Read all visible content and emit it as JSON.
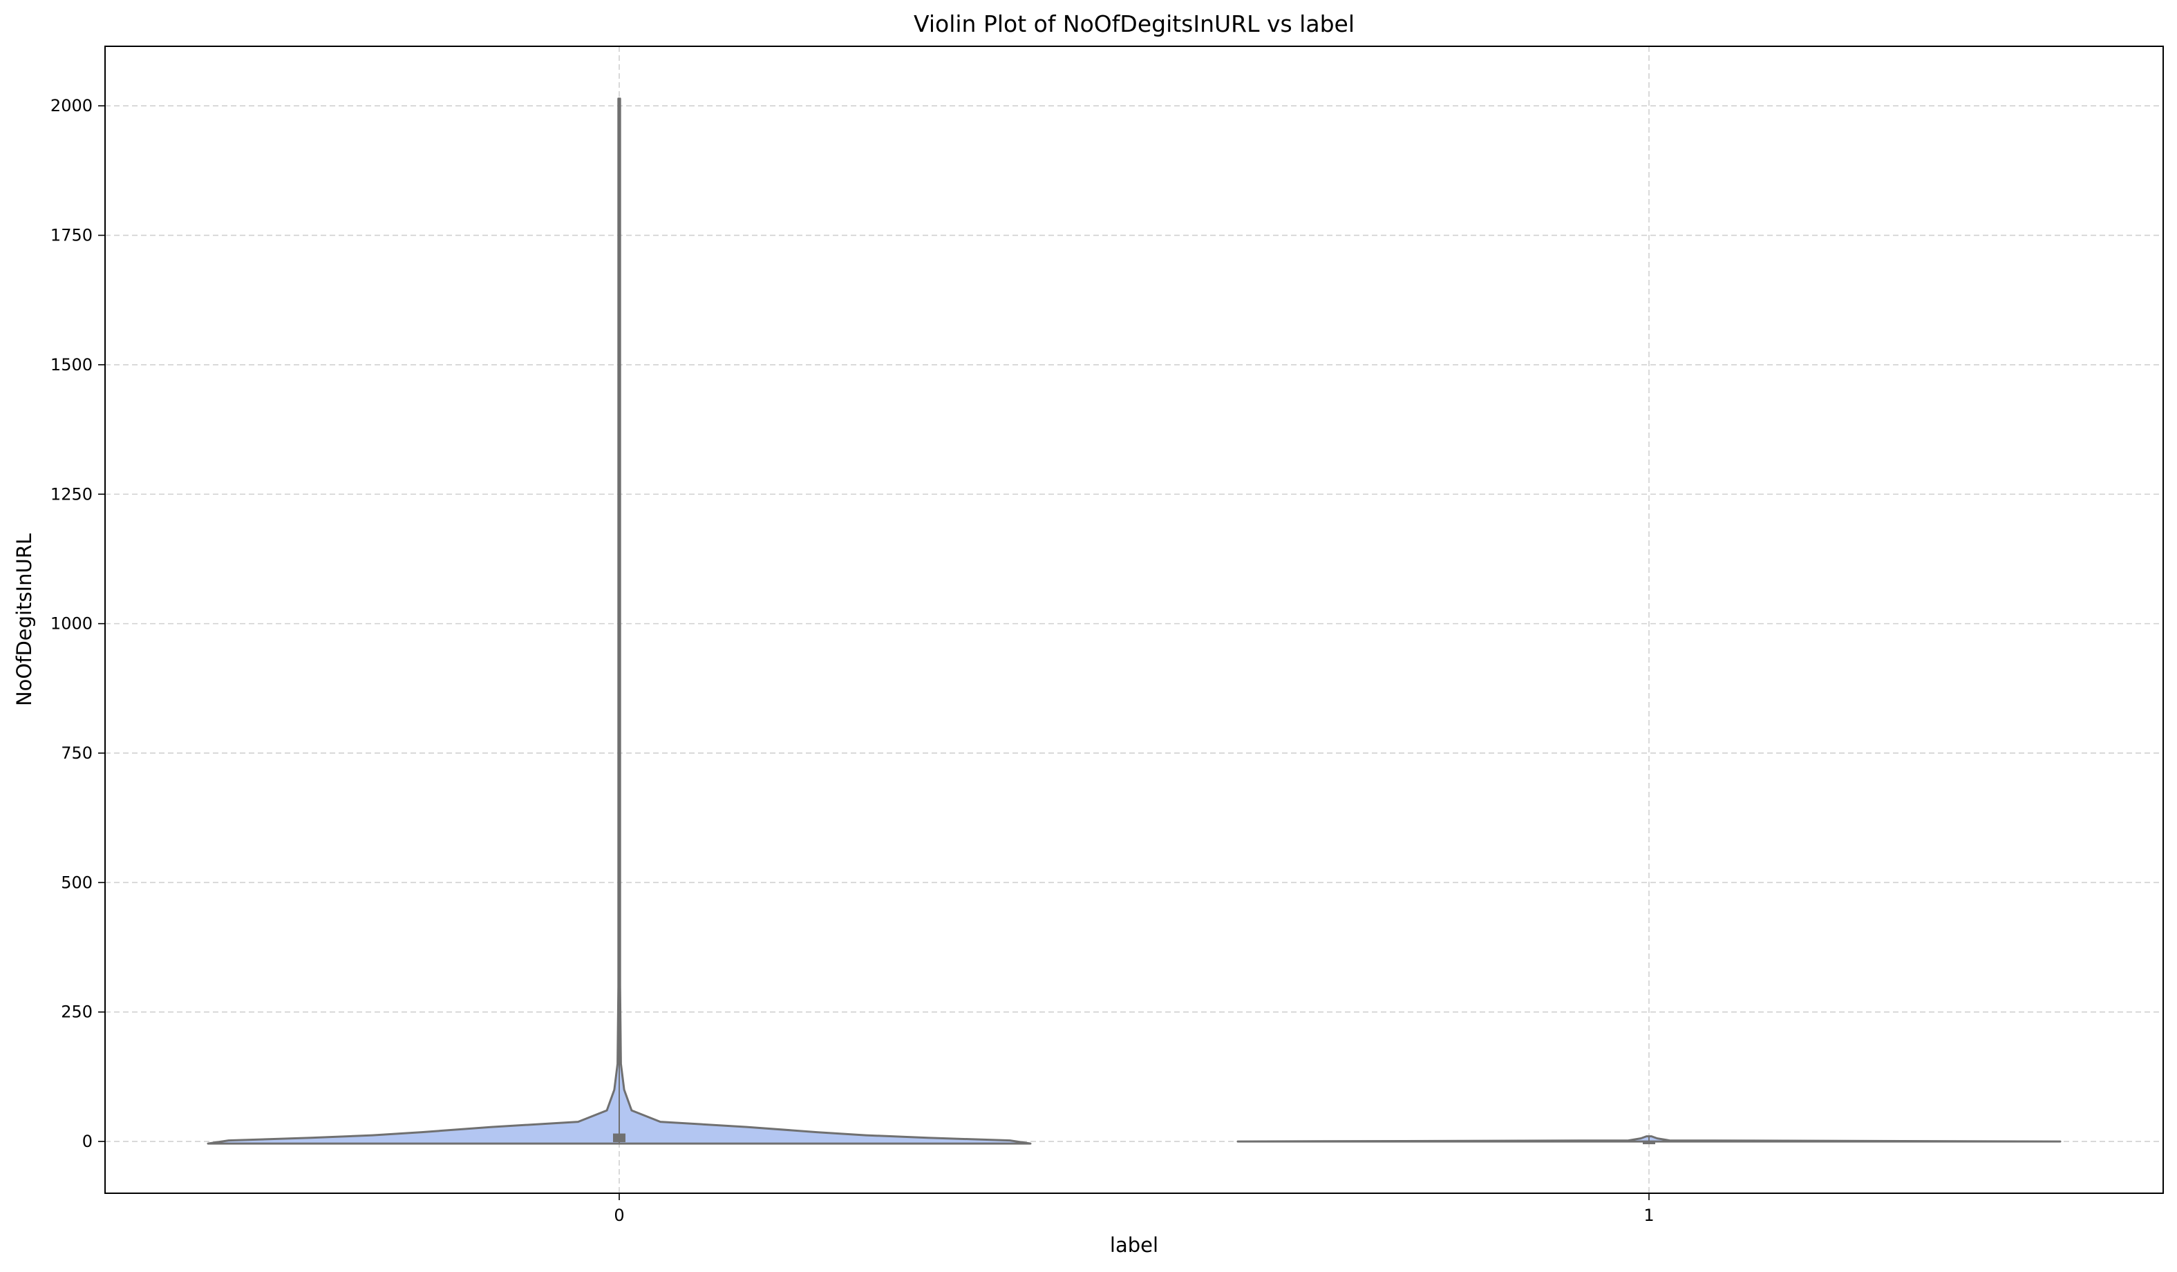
{
  "chart_data": {
    "type": "violin",
    "title": "Violin Plot of NoOfDegitsInURL vs label",
    "xlabel": "label",
    "ylabel": "NoOfDegitsInURL",
    "categories": [
      "0",
      "1"
    ],
    "ylim": [
      -100,
      2115
    ],
    "yticks": [
      0,
      250,
      500,
      750,
      1000,
      1250,
      1500,
      1750,
      2000
    ],
    "grid": true,
    "violin_color": "#b3c6f2",
    "edge_color": "#707070",
    "violins": [
      {
        "category": "0",
        "min": -4,
        "max": 2014,
        "q1": 0,
        "median": 0,
        "q3": 14,
        "density": [
          [
            -4,
            1.0
          ],
          [
            2,
            0.95
          ],
          [
            7,
            0.75
          ],
          [
            12,
            0.6
          ],
          [
            18,
            0.48
          ],
          [
            28,
            0.31
          ],
          [
            38,
            0.1
          ],
          [
            60,
            0.03
          ],
          [
            100,
            0.012
          ],
          [
            150,
            0.004
          ],
          [
            300,
            0.002
          ],
          [
            2014,
            0.002
          ]
        ]
      },
      {
        "category": "1",
        "min": 0,
        "max": 10,
        "q1": 0,
        "median": 0,
        "q3": 0,
        "density": [
          [
            0,
            1.0
          ],
          [
            2,
            0.05
          ],
          [
            6,
            0.02
          ],
          [
            10,
            0.006
          ]
        ]
      }
    ]
  }
}
